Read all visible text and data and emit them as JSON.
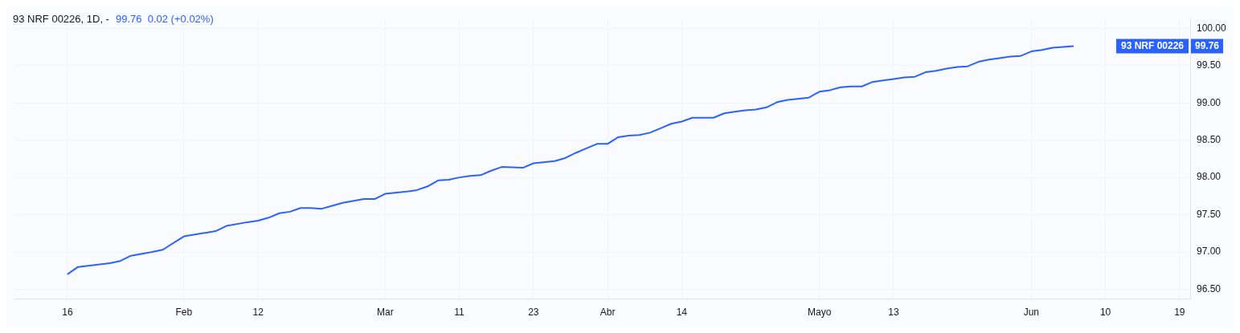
{
  "chart_data": {
    "type": "line",
    "title": "93 NRF 00226, 1D, -",
    "subtitle": "99.76  0.02 (+0.02%)",
    "categories": [
      null,
      null,
      null,
      null,
      null,
      "16",
      null,
      null,
      null,
      null,
      null,
      null,
      null,
      null,
      null,
      null,
      "Feb",
      null,
      null,
      null,
      null,
      null,
      null,
      "12",
      null,
      null,
      null,
      null,
      null,
      null,
      null,
      null,
      null,
      null,
      null,
      "Mar",
      null,
      null,
      null,
      null,
      null,
      null,
      "11",
      null,
      null,
      null,
      null,
      null,
      null,
      "23",
      null,
      null,
      null,
      null,
      null,
      null,
      "Abr",
      null,
      null,
      null,
      null,
      null,
      null,
      "14",
      null,
      null,
      null,
      null,
      null,
      null,
      null,
      null,
      null,
      null,
      null,
      null,
      "Mayo",
      null,
      null,
      null,
      null,
      null,
      null,
      "13",
      null,
      null,
      null,
      null,
      null,
      null,
      null,
      null,
      null,
      null,
      null,
      null,
      "Jun",
      null,
      null,
      null,
      null,
      null,
      null,
      "10",
      null,
      null,
      null,
      null,
      null,
      null,
      "19",
      null
    ],
    "series": [
      {
        "name": "93 NRF 00226",
        "color": "#2962ff",
        "values": [
          null,
          null,
          null,
          null,
          null,
          96.7,
          96.8,
          null,
          null,
          96.85,
          96.88,
          96.95,
          null,
          97.0,
          97.03,
          null,
          97.21,
          null,
          null,
          97.28,
          97.35,
          null,
          97.4,
          97.42,
          97.46,
          97.52,
          97.54,
          97.59,
          97.59,
          97.58,
          97.62,
          97.66,
          null,
          97.71,
          97.71,
          97.78,
          null,
          97.81,
          97.83,
          97.88,
          97.96,
          97.97,
          98.0,
          98.02,
          98.03,
          98.09,
          98.14,
          null,
          98.13,
          98.19,
          null,
          98.22,
          98.26,
          98.33,
          98.39,
          98.45,
          98.45,
          98.54,
          98.56,
          98.57,
          98.6,
          98.66,
          98.72,
          98.75,
          98.8,
          98.8,
          98.8,
          98.86,
          98.88,
          98.9,
          98.91,
          98.94,
          99.01,
          99.04,
          null,
          99.07,
          99.15,
          99.17,
          99.21,
          99.22,
          99.22,
          99.28,
          99.3,
          99.32,
          99.34,
          99.35,
          99.41,
          99.43,
          99.46,
          99.48,
          99.49,
          99.55,
          99.58,
          99.6,
          99.62,
          99.63,
          99.69,
          99.71,
          99.74,
          99.75,
          99.76,
          null,
          null,
          null,
          null,
          null,
          null,
          null,
          null,
          null,
          null,
          null
        ]
      }
    ],
    "ylim": [
      96.37,
      100.13
    ],
    "yticks": [
      {
        "value": 96.5,
        "label": "96.50"
      },
      {
        "value": 97,
        "label": "97.00"
      },
      {
        "value": 97.5,
        "label": "97.50"
      },
      {
        "value": 98,
        "label": "98.00"
      },
      {
        "value": 98.5,
        "label": "98.50"
      },
      {
        "value": 99,
        "label": "99.00"
      },
      {
        "value": 99.5,
        "label": "99.50"
      },
      {
        "value": 100,
        "label": "100.00"
      }
    ],
    "grid": true,
    "marker": "none",
    "line_style": "solid",
    "annotations": [
      "99.76"
    ]
  }
}
